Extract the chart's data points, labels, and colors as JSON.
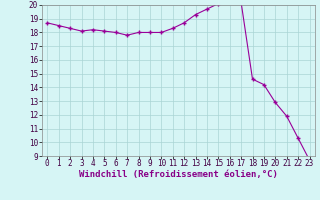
{
  "x": [
    0,
    1,
    2,
    3,
    4,
    5,
    6,
    7,
    8,
    9,
    10,
    11,
    12,
    13,
    14,
    15,
    16,
    17,
    18,
    19,
    20,
    21,
    22,
    23
  ],
  "y": [
    18.7,
    18.5,
    18.3,
    18.1,
    18.2,
    18.1,
    18.0,
    17.8,
    18.0,
    18.0,
    18.0,
    18.3,
    18.7,
    19.3,
    19.7,
    20.1,
    20.2,
    20.2,
    14.6,
    14.2,
    12.9,
    11.9,
    10.3,
    8.7
  ],
  "line_color": "#990099",
  "marker": "+",
  "markersize": 3.5,
  "linewidth": 0.8,
  "bg_color": "#d6f5f5",
  "grid_color": "#aad4d4",
  "xlabel": "Windchill (Refroidissement éolien,°C)",
  "xlabel_color": "#880088",
  "xlabel_fontsize": 6.5,
  "tick_fontsize": 5.5,
  "xlim": [
    -0.5,
    23.5
  ],
  "ylim": [
    9,
    20
  ],
  "yticks": [
    9,
    10,
    11,
    12,
    13,
    14,
    15,
    16,
    17,
    18,
    19,
    20
  ],
  "xticks": [
    0,
    1,
    2,
    3,
    4,
    5,
    6,
    7,
    8,
    9,
    10,
    11,
    12,
    13,
    14,
    15,
    16,
    17,
    18,
    19,
    20,
    21,
    22,
    23
  ],
  "spine_color": "#888888"
}
